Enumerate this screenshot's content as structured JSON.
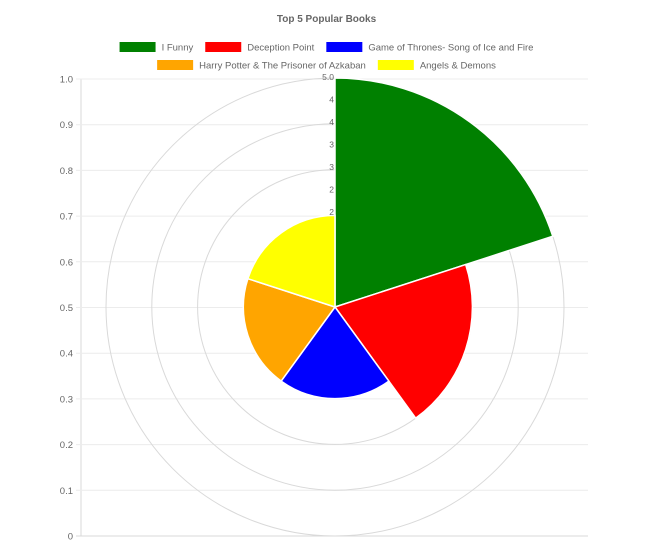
{
  "chart_data": {
    "type": "polarArea",
    "title": "Top 5 Popular Books",
    "categories": [
      "I Funny",
      "Deception Point",
      "Game of Thrones- Song of Ice and Fire",
      "Harry Potter & The Prisoner of Azkaban",
      "Angels & Demons"
    ],
    "values": [
      5,
      3,
      2,
      2,
      2
    ],
    "colors": [
      "#008000",
      "#ff0000",
      "#0000ff",
      "#ffa500",
      "#ffff00"
    ],
    "radial_ticks": [
      "5.0",
      "4",
      "4",
      "3",
      "3",
      "2",
      "2"
    ],
    "radial_max": 5,
    "y_axis_ticks": [
      "1.0",
      "0.9",
      "0.8",
      "0.7",
      "0.6",
      "0.5",
      "0.4",
      "0.3",
      "0.2",
      "0.1",
      "0"
    ],
    "legend_position": "top",
    "grid": true
  }
}
